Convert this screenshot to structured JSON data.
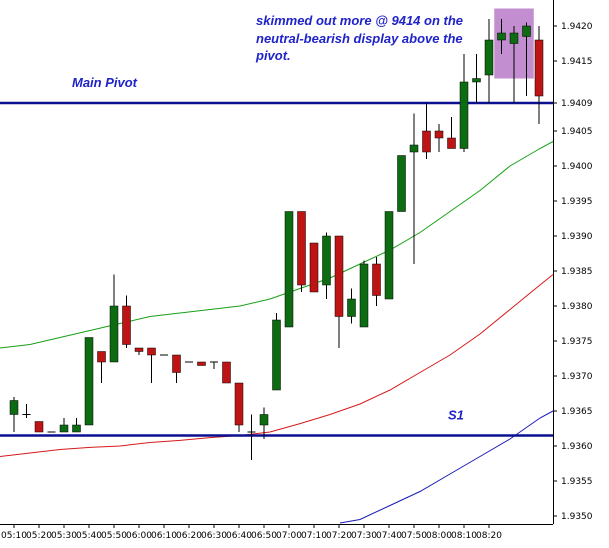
{
  "chart_data": {
    "type": "candlestick",
    "title": "",
    "xlabel": "",
    "ylabel": "",
    "ylim": [
      1.9348,
      1.9425
    ],
    "y_ticks": [
      "1.9350",
      "1.9355",
      "1.9360",
      "1.9365",
      "1.9370",
      "1.9375",
      "1.9380",
      "1.9385",
      "1.9390",
      "1.9395",
      "1.9400",
      "1.9405",
      "1.9409",
      "1.9415",
      "1.9420"
    ],
    "x_ticks": [
      "05:10",
      "05:20",
      "05:30",
      "05:40",
      "05:50",
      "06:00",
      "06:10",
      "06:20",
      "06:30",
      "06:40",
      "06:50",
      "07:00",
      "07:10",
      "07:20",
      "07:30",
      "07:40",
      "07:50",
      "08:00",
      "08:10",
      "08:20"
    ],
    "colors": {
      "up": "#0d6b12",
      "down": "#bf1414",
      "pivot": "#0a1090",
      "ma_green": "#16a016",
      "ma_red": "#d61a1a",
      "ma_blue": "#1a1ab8",
      "highlight": "#b87ac8",
      "annotation": "#1f23c8"
    },
    "candles": [
      {
        "t": "05:05",
        "o": 1.93645,
        "h": 1.9367,
        "l": 1.9362,
        "c": 1.93665
      },
      {
        "t": "05:10",
        "o": 1.93645,
        "h": 1.9366,
        "l": 1.9364,
        "c": 1.93645
      },
      {
        "t": "05:15",
        "o": 1.93635,
        "h": 1.93635,
        "l": 1.9362,
        "c": 1.9362
      },
      {
        "t": "05:20",
        "o": 1.9362,
        "h": 1.9362,
        "l": 1.9362,
        "c": 1.9362
      },
      {
        "t": "05:25",
        "o": 1.9362,
        "h": 1.9364,
        "l": 1.9362,
        "c": 1.9363
      },
      {
        "t": "05:30",
        "o": 1.9362,
        "h": 1.9364,
        "l": 1.9362,
        "c": 1.9363
      },
      {
        "t": "05:35",
        "o": 1.9363,
        "h": 1.93755,
        "l": 1.9363,
        "c": 1.93755
      },
      {
        "t": "05:40",
        "o": 1.93735,
        "h": 1.93735,
        "l": 1.9369,
        "c": 1.9372
      },
      {
        "t": "05:45",
        "o": 1.9372,
        "h": 1.93845,
        "l": 1.9372,
        "c": 1.938
      },
      {
        "t": "05:50",
        "o": 1.938,
        "h": 1.93815,
        "l": 1.9374,
        "c": 1.93745
      },
      {
        "t": "05:55",
        "o": 1.9374,
        "h": 1.9374,
        "l": 1.9373,
        "c": 1.93735
      },
      {
        "t": "06:00",
        "o": 1.9374,
        "h": 1.9374,
        "l": 1.9369,
        "c": 1.9373
      },
      {
        "t": "06:05",
        "o": 1.9373,
        "h": 1.9373,
        "l": 1.9373,
        "c": 1.9373
      },
      {
        "t": "06:10",
        "o": 1.9373,
        "h": 1.9373,
        "l": 1.9369,
        "c": 1.93705
      },
      {
        "t": "06:15",
        "o": 1.9372,
        "h": 1.9372,
        "l": 1.9372,
        "c": 1.9372
      },
      {
        "t": "06:20",
        "o": 1.9372,
        "h": 1.9372,
        "l": 1.93715,
        "c": 1.93715
      },
      {
        "t": "06:25",
        "o": 1.9372,
        "h": 1.9372,
        "l": 1.9371,
        "c": 1.9372
      },
      {
        "t": "06:30",
        "o": 1.9372,
        "h": 1.9372,
        "l": 1.9369,
        "c": 1.9369
      },
      {
        "t": "06:35",
        "o": 1.9369,
        "h": 1.9369,
        "l": 1.9362,
        "c": 1.9363
      },
      {
        "t": "06:40",
        "o": 1.9362,
        "h": 1.93645,
        "l": 1.9358,
        "c": 1.9362
      },
      {
        "t": "06:45",
        "o": 1.9363,
        "h": 1.93655,
        "l": 1.9361,
        "c": 1.93645
      },
      {
        "t": "06:50",
        "o": 1.9368,
        "h": 1.9379,
        "l": 1.9368,
        "c": 1.9378
      },
      {
        "t": "06:55",
        "o": 1.9377,
        "h": 1.93935,
        "l": 1.9377,
        "c": 1.93935
      },
      {
        "t": "07:00",
        "o": 1.93935,
        "h": 1.93935,
        "l": 1.9382,
        "c": 1.9383
      },
      {
        "t": "07:05",
        "o": 1.9389,
        "h": 1.9389,
        "l": 1.9382,
        "c": 1.9382
      },
      {
        "t": "07:10",
        "o": 1.9383,
        "h": 1.93905,
        "l": 1.9381,
        "c": 1.939
      },
      {
        "t": "07:15",
        "o": 1.939,
        "h": 1.939,
        "l": 1.9374,
        "c": 1.93785
      },
      {
        "t": "07:20",
        "o": 1.93785,
        "h": 1.93825,
        "l": 1.93775,
        "c": 1.9381
      },
      {
        "t": "07:25",
        "o": 1.9377,
        "h": 1.93865,
        "l": 1.9377,
        "c": 1.9386
      },
      {
        "t": "07:30",
        "o": 1.9386,
        "h": 1.9387,
        "l": 1.938,
        "c": 1.93815
      },
      {
        "t": "07:35",
        "o": 1.9381,
        "h": 1.93935,
        "l": 1.9381,
        "c": 1.93935
      },
      {
        "t": "07:40",
        "o": 1.93935,
        "h": 1.94015,
        "l": 1.93935,
        "c": 1.94015
      },
      {
        "t": "07:45",
        "o": 1.9402,
        "h": 1.94075,
        "l": 1.9386,
        "c": 1.9403
      },
      {
        "t": "07:50",
        "o": 1.9405,
        "h": 1.9409,
        "l": 1.9401,
        "c": 1.9402
      },
      {
        "t": "07:55",
        "o": 1.9405,
        "h": 1.9406,
        "l": 1.9402,
        "c": 1.9404
      },
      {
        "t": "08:00",
        "o": 1.9404,
        "h": 1.9407,
        "l": 1.9403,
        "c": 1.94025
      },
      {
        "t": "08:05",
        "o": 1.94025,
        "h": 1.9416,
        "l": 1.9402,
        "c": 1.9412
      },
      {
        "t": "08:10",
        "o": 1.9412,
        "h": 1.9416,
        "l": 1.9409,
        "c": 1.94125
      },
      {
        "t": "08:15",
        "o": 1.9413,
        "h": 1.9421,
        "l": 1.9409,
        "c": 1.9418
      },
      {
        "t": "08:20",
        "o": 1.9418,
        "h": 1.9421,
        "l": 1.9416,
        "c": 1.9419
      },
      {
        "t": "08:25",
        "o": 1.94175,
        "h": 1.942,
        "l": 1.9409,
        "c": 1.9419
      },
      {
        "t": "08:30",
        "o": 1.94185,
        "h": 1.94205,
        "l": 1.941,
        "c": 1.942
      },
      {
        "t": "08:35",
        "o": 1.9418,
        "h": 1.942,
        "l": 1.9406,
        "c": 1.941
      }
    ],
    "moving_averages": [
      {
        "color_key": "ma_green",
        "points": [
          [
            0,
            1.9374
          ],
          [
            30,
            1.93745
          ],
          [
            60,
            1.93755
          ],
          [
            90,
            1.93765
          ],
          [
            120,
            1.93775
          ],
          [
            150,
            1.93785
          ],
          [
            180,
            1.9379
          ],
          [
            210,
            1.93795
          ],
          [
            240,
            1.938
          ],
          [
            270,
            1.9381
          ],
          [
            300,
            1.93825
          ],
          [
            330,
            1.9384
          ],
          [
            360,
            1.9386
          ],
          [
            390,
            1.9388
          ],
          [
            420,
            1.93905
          ],
          [
            450,
            1.93935
          ],
          [
            480,
            1.93965
          ],
          [
            510,
            1.94
          ],
          [
            540,
            1.94025
          ],
          [
            553,
            1.94035
          ]
        ]
      },
      {
        "color_key": "ma_red",
        "points": [
          [
            0,
            1.93585
          ],
          [
            30,
            1.9359
          ],
          [
            60,
            1.93595
          ],
          [
            90,
            1.93598
          ],
          [
            120,
            1.936
          ],
          [
            150,
            1.93605
          ],
          [
            180,
            1.93608
          ],
          [
            210,
            1.93612
          ],
          [
            240,
            1.93615
          ],
          [
            270,
            1.9362
          ],
          [
            300,
            1.93632
          ],
          [
            330,
            1.93645
          ],
          [
            360,
            1.9366
          ],
          [
            390,
            1.9368
          ],
          [
            420,
            1.93705
          ],
          [
            450,
            1.9373
          ],
          [
            480,
            1.9376
          ],
          [
            510,
            1.93795
          ],
          [
            540,
            1.9383
          ],
          [
            553,
            1.93845
          ]
        ]
      },
      {
        "color_key": "ma_blue",
        "points": [
          [
            340,
            1.9349
          ],
          [
            360,
            1.93495
          ],
          [
            390,
            1.93515
          ],
          [
            420,
            1.93535
          ],
          [
            450,
            1.9356
          ],
          [
            480,
            1.93585
          ],
          [
            510,
            1.9361
          ],
          [
            540,
            1.9364
          ],
          [
            553,
            1.9365
          ]
        ]
      }
    ],
    "levels": [
      {
        "name": "Main Pivot",
        "value": 1.9409,
        "label": "Main Pivot",
        "color_key": "pivot"
      },
      {
        "name": "S1",
        "value": 1.93615,
        "label": "S1",
        "color_key": "pivot"
      }
    ],
    "highlight_box": {
      "x_start_candle": 39,
      "x_end_candle": 41,
      "y_top": 1.94225,
      "y_bottom": 1.94125
    },
    "annotation": {
      "lines": [
        "skimmed out more @ 9414 on the",
        "neutral-bearish display above the",
        "pivot."
      ]
    }
  }
}
